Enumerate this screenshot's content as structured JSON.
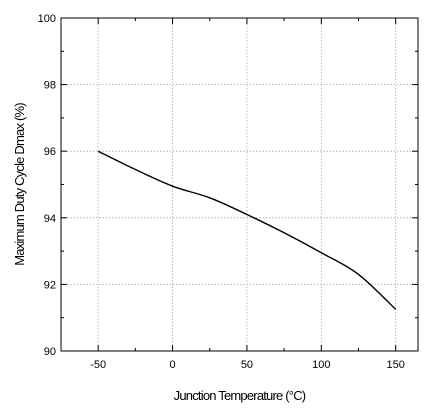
{
  "chart_data": {
    "type": "line",
    "title": "",
    "xlabel": "Junction Temperature (°C)",
    "ylabel": "Maximum Duty Cycle Dmax (%)",
    "xlim": [
      -75,
      165
    ],
    "ylim": [
      90,
      100
    ],
    "xticks": [
      -50,
      0,
      50,
      100,
      150
    ],
    "yticks": [
      90,
      92,
      94,
      96,
      98,
      100
    ],
    "x_minor_step": 25,
    "y_minor_step": 1,
    "grid": true,
    "legend": "none",
    "series": [
      {
        "x": [
          -50,
          -25,
          0,
          25,
          50,
          75,
          100,
          125,
          150
        ],
        "values": [
          96.0,
          95.45,
          94.95,
          94.6,
          94.1,
          93.55,
          92.95,
          92.3,
          91.25
        ]
      }
    ]
  }
}
